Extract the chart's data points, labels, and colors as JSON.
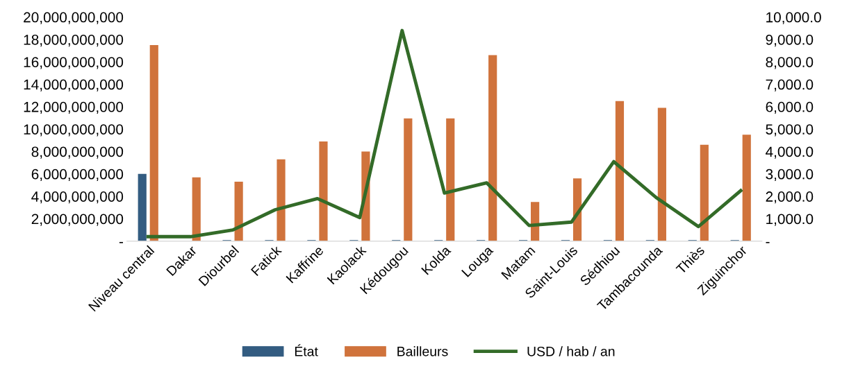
{
  "chart_data": {
    "type": "bar",
    "categories": [
      "Niveau central",
      "Dakar",
      "Diourbel",
      "Fatick",
      "Kaffrine",
      "Kaolack",
      "Kédougou",
      "Kolda",
      "Louga",
      "Matam",
      "Saint-Louis",
      "Sédhiou",
      "Tambacounda",
      "Thiès",
      "Ziguinchor"
    ],
    "series": [
      {
        "name": "État",
        "color": "#335c81",
        "values": [
          6000000000,
          null,
          100000000,
          100000000,
          100000000,
          100000000,
          100000000,
          100000000,
          100000000,
          100000000,
          100000000,
          100000000,
          100000000,
          100000000,
          100000000
        ]
      },
      {
        "name": "Bailleurs",
        "color": "#d0733c",
        "values": [
          17500000000,
          5700000000,
          5300000000,
          7300000000,
          8900000000,
          8000000000,
          10950000000,
          10950000000,
          16600000000,
          3500000000,
          5600000000,
          12500000000,
          11900000000,
          8600000000,
          9500000000
        ]
      },
      {
        "name": "USD / hab / an",
        "type": "line",
        "axis": "y2",
        "color": "#336b28",
        "values": [
          200,
          200,
          500,
          1400,
          1900,
          1050,
          9400,
          2150,
          2600,
          700,
          850,
          3550,
          1950,
          650,
          2250
        ]
      }
    ],
    "ylim": [
      0,
      20000000000
    ],
    "yticks": [
      {
        "value": 0,
        "label": "-"
      },
      {
        "value": 2000000000,
        "label": "2,000,000,000"
      },
      {
        "value": 4000000000,
        "label": "4,000,000,000"
      },
      {
        "value": 6000000000,
        "label": "6,000,000,000"
      },
      {
        "value": 8000000000,
        "label": "8,000,000,000"
      },
      {
        "value": 10000000000,
        "label": "10,000,000,000"
      },
      {
        "value": 12000000000,
        "label": "12,000,000,000"
      },
      {
        "value": 14000000000,
        "label": "14,000,000,000"
      },
      {
        "value": 16000000000,
        "label": "16,000,000,000"
      },
      {
        "value": 18000000000,
        "label": "18,000,000,000"
      },
      {
        "value": 20000000000,
        "label": "20,000,000,000"
      }
    ],
    "y2lim": [
      0,
      10000
    ],
    "y2ticks": [
      {
        "value": 0,
        "label": "-"
      },
      {
        "value": 1000,
        "label": "1,000.0"
      },
      {
        "value": 2000,
        "label": "2,000.0"
      },
      {
        "value": 3000,
        "label": "3,000.0"
      },
      {
        "value": 4000,
        "label": "4,000.0"
      },
      {
        "value": 5000,
        "label": "5,000.0"
      },
      {
        "value": 6000,
        "label": "6,000.0"
      },
      {
        "value": 7000,
        "label": "7,000.0"
      },
      {
        "value": 8000,
        "label": "8,000.0"
      },
      {
        "value": 9000,
        "label": "9,000.0"
      },
      {
        "value": 10000,
        "label": "10,000.0"
      }
    ],
    "grid": false,
    "legend": "bottom",
    "marker": "none"
  }
}
